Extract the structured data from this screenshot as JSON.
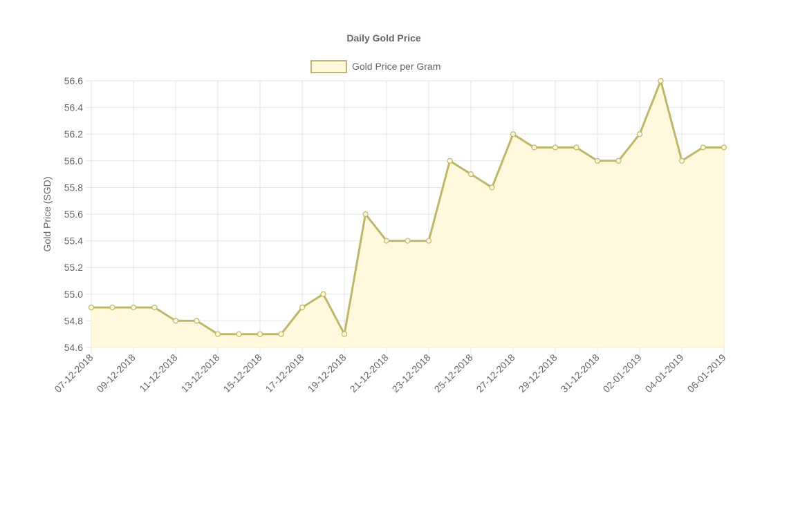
{
  "chart_data": {
    "type": "line",
    "title": "Daily Gold Price",
    "ylabel": "Gold Price (SGD)",
    "xlabel": "",
    "legend_position": "top",
    "grid": true,
    "fill": true,
    "ylim": [
      54.6,
      56.6
    ],
    "y_ticks": [
      "56.6",
      "56.4",
      "56.2",
      "56.0",
      "55.8",
      "55.6",
      "55.4",
      "55.2",
      "55.0",
      "54.8",
      "54.6"
    ],
    "x": [
      "07-12-2018",
      "08-12-2018",
      "09-12-2018",
      "10-12-2018",
      "11-12-2018",
      "12-12-2018",
      "13-12-2018",
      "14-12-2018",
      "15-12-2018",
      "16-12-2018",
      "17-12-2018",
      "18-12-2018",
      "19-12-2018",
      "20-12-2018",
      "21-12-2018",
      "22-12-2018",
      "23-12-2018",
      "24-12-2018",
      "25-12-2018",
      "26-12-2018",
      "27-12-2018",
      "28-12-2018",
      "29-12-2018",
      "30-12-2018",
      "31-12-2018",
      "01-01-2019",
      "02-01-2019",
      "03-01-2019",
      "04-01-2019",
      "05-01-2019",
      "06-01-2019"
    ],
    "x_tick_labels": [
      "07-12-2018",
      "09-12-2018",
      "11-12-2018",
      "13-12-2018",
      "15-12-2018",
      "17-12-2018",
      "19-12-2018",
      "21-12-2018",
      "23-12-2018",
      "25-12-2018",
      "27-12-2018",
      "29-12-2018",
      "31-12-2018",
      "02-01-2019",
      "04-01-2019",
      "06-01-2019"
    ],
    "series": [
      {
        "name": "Gold Price per Gram",
        "values": [
          54.9,
          54.9,
          54.9,
          54.9,
          54.8,
          54.8,
          54.7,
          54.7,
          54.7,
          54.7,
          54.9,
          55.0,
          54.7,
          55.6,
          55.4,
          55.4,
          55.4,
          56.0,
          55.9,
          55.8,
          56.2,
          56.1,
          56.1,
          56.1,
          56.0,
          56.0,
          56.2,
          56.6,
          56.0,
          56.1,
          56.1
        ]
      }
    ],
    "colors": {
      "line": "#BDB76B",
      "fill": "#FFF8DC",
      "grid": "#E5E5E5",
      "text": "#666666"
    }
  }
}
